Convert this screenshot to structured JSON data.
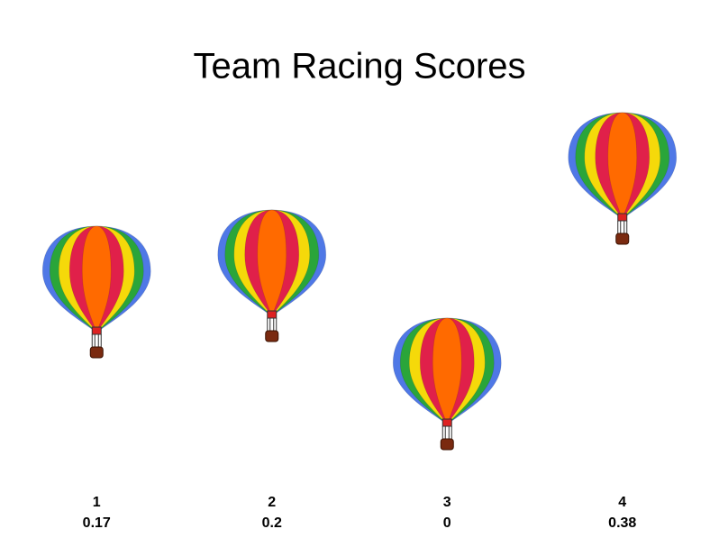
{
  "chart_data": {
    "type": "pictograph",
    "title": "Team Racing Scores",
    "categories": [
      "1",
      "2",
      "3",
      "4"
    ],
    "values": [
      0.17,
      0.2,
      0,
      0.38
    ]
  }
}
